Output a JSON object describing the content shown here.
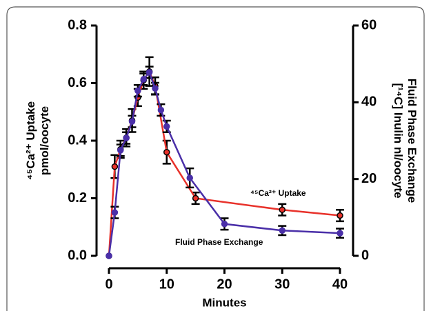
{
  "chart_data": {
    "type": "line",
    "xlabel": "Minutes",
    "ylabel": [
      "⁴⁵Ca²⁺ Uptake",
      "pmol/oocyte"
    ],
    "y2label": [
      "Fluid Phase Exchange",
      "[¹⁴C] Inulin nl/oocyte"
    ],
    "xlim": [
      0,
      40
    ],
    "xticks": [
      0,
      10,
      20,
      30,
      40
    ],
    "ylim": [
      0,
      0.8
    ],
    "yticks": [
      {
        "value": 0,
        "label": "0.0"
      },
      0.2,
      0.4,
      0.6,
      0.8
    ],
    "y2lim": [
      0,
      60
    ],
    "y2ticks": [
      0,
      20,
      40,
      60
    ],
    "series": [
      {
        "name": "⁴⁵Ca²⁺ Uptake",
        "color": "#e8312a",
        "axis": "y",
        "x": [
          0,
          1,
          2,
          3,
          4,
          5,
          6,
          7,
          8,
          10,
          15,
          30,
          40
        ],
        "values": [
          0,
          0.31,
          0.37,
          0.41,
          0.47,
          0.55,
          0.61,
          0.64,
          0.59,
          0.36,
          0.2,
          0.16,
          0.14
        ],
        "errors": [
          0,
          0.04,
          0.03,
          0.03,
          0.04,
          0.03,
          0.03,
          0.05,
          0.03,
          0.04,
          0.02,
          0.02,
          0.02
        ]
      },
      {
        "name": "Fluid Phase Exchange",
        "color": "#4a2fa8",
        "axis": "y2",
        "x": [
          0,
          1,
          2,
          3,
          4,
          5,
          6,
          7,
          8,
          9,
          10,
          14,
          20,
          30,
          40
        ],
        "values": [
          0,
          11.3,
          27.5,
          30.7,
          35,
          43,
          46,
          47.8,
          43.6,
          38,
          33.7,
          20.3,
          8.3,
          6.6,
          5.9
        ],
        "errors": [
          0,
          1.5,
          1.5,
          1.5,
          1.5,
          1.5,
          1.5,
          1.5,
          1.5,
          1.5,
          1.5,
          2.5,
          1.5,
          1.2,
          1.2
        ]
      }
    ]
  }
}
